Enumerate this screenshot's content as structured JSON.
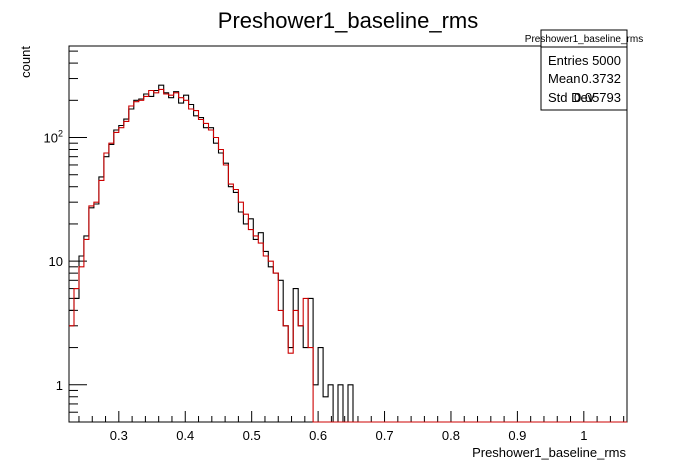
{
  "chart_data": {
    "type": "histogram",
    "title": "Preshower1_baseline_rms",
    "xlabel": "Preshower1_baseline_rms",
    "ylabel": "count",
    "xlim": [
      0.225,
      1.065
    ],
    "ylim": [
      0.5,
      550
    ],
    "yscale": "log",
    "grid": false,
    "x_ticks": [
      0.3,
      0.4,
      0.5,
      0.6,
      0.7,
      0.8,
      0.9,
      1
    ],
    "x_tick_labels": [
      "0.3",
      "0.4",
      "0.5",
      "0.6",
      "0.7",
      "0.8",
      "0.9",
      "1"
    ],
    "y_ticks": [
      1,
      10,
      100
    ],
    "y_tick_labels": [
      "1",
      "10",
      "10^2"
    ],
    "bin_width": 0.0075,
    "series": [
      {
        "color": "#000000",
        "bins": [
          [
            0.225,
            4
          ],
          [
            0.2325,
            5
          ],
          [
            0.24,
            11
          ],
          [
            0.2475,
            16
          ],
          [
            0.255,
            27
          ],
          [
            0.2625,
            29
          ],
          [
            0.27,
            48
          ],
          [
            0.2775,
            70
          ],
          [
            0.285,
            88
          ],
          [
            0.2925,
            115
          ],
          [
            0.3,
            125
          ],
          [
            0.3075,
            141
          ],
          [
            0.315,
            170
          ],
          [
            0.3225,
            200
          ],
          [
            0.33,
            205
          ],
          [
            0.3375,
            225
          ],
          [
            0.345,
            215
          ],
          [
            0.3525,
            240
          ],
          [
            0.36,
            265
          ],
          [
            0.3675,
            230
          ],
          [
            0.375,
            210
          ],
          [
            0.3825,
            235
          ],
          [
            0.39,
            190
          ],
          [
            0.3975,
            220
          ],
          [
            0.405,
            185
          ],
          [
            0.4125,
            150
          ],
          [
            0.42,
            145
          ],
          [
            0.4275,
            120
          ],
          [
            0.435,
            120
          ],
          [
            0.4425,
            90
          ],
          [
            0.45,
            75
          ],
          [
            0.4575,
            62
          ],
          [
            0.465,
            40
          ],
          [
            0.4725,
            36
          ],
          [
            0.48,
            25
          ],
          [
            0.4875,
            20
          ],
          [
            0.495,
            22
          ],
          [
            0.5025,
            15
          ],
          [
            0.51,
            17
          ],
          [
            0.5175,
            12
          ],
          [
            0.525,
            9
          ],
          [
            0.5325,
            8
          ],
          [
            0.54,
            7
          ],
          [
            0.5475,
            3
          ],
          [
            0.555,
            2
          ],
          [
            0.5625,
            6
          ],
          [
            0.57,
            3
          ],
          [
            0.5775,
            2
          ],
          [
            0.585,
            5
          ],
          [
            0.5925,
            1
          ],
          [
            0.6,
            2
          ],
          [
            0.6075,
            0.8
          ],
          [
            0.615,
            1
          ],
          [
            0.6225,
            0
          ],
          [
            0.63,
            1
          ],
          [
            0.6375,
            0
          ],
          [
            0.645,
            1
          ]
        ]
      },
      {
        "color": "#cc0000",
        "bins": [
          [
            0.225,
            3
          ],
          [
            0.2325,
            6
          ],
          [
            0.24,
            9
          ],
          [
            0.2475,
            15
          ],
          [
            0.255,
            28
          ],
          [
            0.2625,
            30
          ],
          [
            0.27,
            45
          ],
          [
            0.2775,
            75
          ],
          [
            0.285,
            90
          ],
          [
            0.2925,
            110
          ],
          [
            0.3,
            120
          ],
          [
            0.3075,
            135
          ],
          [
            0.315,
            180
          ],
          [
            0.3225,
            195
          ],
          [
            0.33,
            200
          ],
          [
            0.3375,
            215
          ],
          [
            0.345,
            240
          ],
          [
            0.3525,
            230
          ],
          [
            0.36,
            245
          ],
          [
            0.3675,
            225
          ],
          [
            0.375,
            220
          ],
          [
            0.3825,
            230
          ],
          [
            0.39,
            210
          ],
          [
            0.3975,
            200
          ],
          [
            0.405,
            170
          ],
          [
            0.4125,
            165
          ],
          [
            0.42,
            140
          ],
          [
            0.4275,
            130
          ],
          [
            0.435,
            115
          ],
          [
            0.4425,
            100
          ],
          [
            0.45,
            80
          ],
          [
            0.4575,
            60
          ],
          [
            0.465,
            42
          ],
          [
            0.4725,
            38
          ],
          [
            0.48,
            30
          ],
          [
            0.4875,
            24
          ],
          [
            0.495,
            18
          ],
          [
            0.5025,
            16
          ],
          [
            0.51,
            14
          ],
          [
            0.5175,
            11
          ],
          [
            0.525,
            10
          ],
          [
            0.5325,
            8
          ],
          [
            0.54,
            4
          ],
          [
            0.5475,
            3
          ],
          [
            0.555,
            1.8
          ],
          [
            0.5625,
            4
          ],
          [
            0.57,
            3
          ],
          [
            0.5775,
            5
          ],
          [
            0.585,
            2
          ],
          [
            0.5925,
            0
          ]
        ]
      }
    ],
    "stats": {
      "name": "Preshower1_baseline_rms",
      "rows": [
        {
          "label": "Entries",
          "value": "5000"
        },
        {
          "label": "Mean",
          "value": "0.3732"
        },
        {
          "label": "Std Dev",
          "value": "0.05793"
        }
      ]
    }
  }
}
